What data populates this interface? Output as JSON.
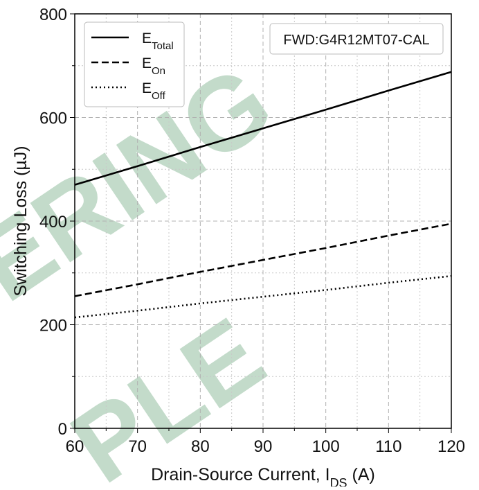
{
  "chart_data": {
    "type": "line",
    "ylabel": "Switching Loss (µJ)",
    "xlabel": [
      {
        "text": "Drain-Source Current, I"
      },
      {
        "text": "DS",
        "sub": true
      },
      {
        "text": " (A)"
      }
    ],
    "annotation": "FWD:G4R12MT07-CAL",
    "watermark": [
      "ERING",
      "PLE"
    ],
    "x": [
      60,
      70,
      80,
      90,
      100,
      110,
      120
    ],
    "series": [
      {
        "name": "E",
        "subscript": "Total",
        "color": "#000000",
        "dash": "solid",
        "values": [
          470,
          506,
          543,
          579,
          615,
          652,
          688
        ]
      },
      {
        "name": "E",
        "subscript": "On",
        "color": "#000000",
        "dash": "dashed",
        "values": [
          255,
          278,
          302,
          325,
          348,
          372,
          395
        ]
      },
      {
        "name": "E",
        "subscript": "Off",
        "color": "#000000",
        "dash": "dotted",
        "values": [
          214,
          227,
          241,
          254,
          267,
          281,
          294
        ]
      }
    ],
    "xlim": [
      60,
      120
    ],
    "ylim": [
      0,
      800
    ],
    "xticks": [
      60,
      70,
      80,
      90,
      100,
      110,
      120
    ],
    "yticks": [
      0,
      200,
      400,
      600,
      800
    ],
    "xminorticks": [
      65,
      75,
      85,
      95,
      105,
      115
    ],
    "yminorticks": [
      100,
      300,
      500,
      700
    ],
    "grid": true,
    "legend": "upper left"
  }
}
